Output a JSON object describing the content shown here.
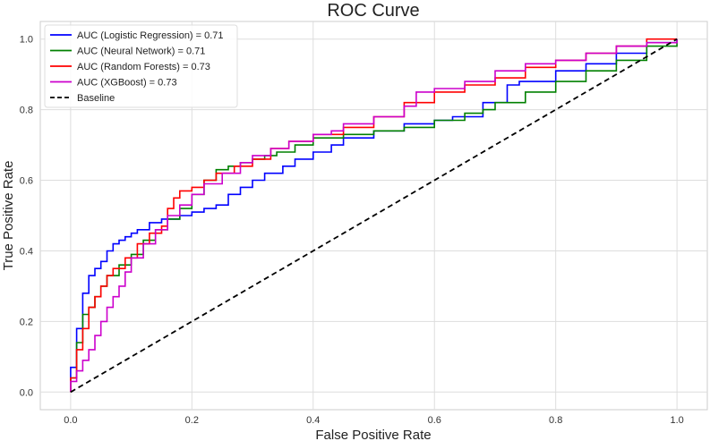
{
  "chart_data": {
    "type": "line",
    "title": "ROC Curve",
    "xlabel": "False Positive Rate",
    "ylabel": "True Positive Rate",
    "xlim": [
      -0.05,
      1.05
    ],
    "ylim": [
      -0.05,
      1.05
    ],
    "xticks": [
      0.0,
      0.2,
      0.4,
      0.6,
      0.8,
      1.0
    ],
    "yticks": [
      0.0,
      0.2,
      0.4,
      0.6,
      0.8,
      1.0
    ],
    "tick_labels_x": [
      "0.0",
      "0.2",
      "0.4",
      "0.6",
      "0.8",
      "1.0"
    ],
    "tick_labels_y": [
      "0.0",
      "0.2",
      "0.4",
      "0.6",
      "0.8",
      "1.0"
    ],
    "grid": true,
    "legend_position": "top-left",
    "series": [
      {
        "name": "AUC (Logistic Regression) = 0.71",
        "color": "#0000ff",
        "style": "solid",
        "x": [
          0,
          0,
          0.01,
          0.01,
          0.02,
          0.02,
          0.03,
          0.03,
          0.04,
          0.05,
          0.06,
          0.07,
          0.08,
          0.09,
          0.1,
          0.11,
          0.13,
          0.15,
          0.18,
          0.2,
          0.22,
          0.24,
          0.26,
          0.28,
          0.3,
          0.32,
          0.35,
          0.37,
          0.4,
          0.43,
          0.45,
          0.5,
          0.55,
          0.6,
          0.63,
          0.68,
          0.72,
          0.74,
          0.8,
          0.85,
          0.9,
          0.95,
          1.0
        ],
        "y": [
          0,
          0.07,
          0.08,
          0.18,
          0.18,
          0.28,
          0.29,
          0.33,
          0.35,
          0.37,
          0.4,
          0.42,
          0.43,
          0.44,
          0.45,
          0.46,
          0.48,
          0.49,
          0.5,
          0.51,
          0.52,
          0.53,
          0.56,
          0.58,
          0.6,
          0.62,
          0.64,
          0.66,
          0.68,
          0.7,
          0.72,
          0.74,
          0.76,
          0.77,
          0.78,
          0.82,
          0.87,
          0.88,
          0.91,
          0.93,
          0.96,
          0.99,
          1.0
        ]
      },
      {
        "name": "AUC (Neural Network) = 0.71",
        "color": "#008000",
        "style": "solid",
        "x": [
          0,
          0,
          0.01,
          0.01,
          0.02,
          0.02,
          0.03,
          0.04,
          0.05,
          0.06,
          0.08,
          0.1,
          0.12,
          0.14,
          0.16,
          0.18,
          0.2,
          0.22,
          0.24,
          0.26,
          0.28,
          0.3,
          0.32,
          0.34,
          0.37,
          0.4,
          0.45,
          0.5,
          0.55,
          0.6,
          0.65,
          0.68,
          0.7,
          0.75,
          0.8,
          0.85,
          0.9,
          0.95,
          1.0
        ],
        "y": [
          0,
          0.04,
          0.05,
          0.14,
          0.15,
          0.22,
          0.24,
          0.27,
          0.3,
          0.33,
          0.36,
          0.39,
          0.43,
          0.46,
          0.49,
          0.52,
          0.56,
          0.6,
          0.63,
          0.64,
          0.65,
          0.66,
          0.67,
          0.68,
          0.7,
          0.72,
          0.73,
          0.74,
          0.75,
          0.77,
          0.79,
          0.8,
          0.82,
          0.85,
          0.88,
          0.91,
          0.94,
          0.98,
          1.0
        ]
      },
      {
        "name": "AUC (Random Forests) = 0.73",
        "color": "#ff0000",
        "style": "solid",
        "x": [
          0,
          0,
          0.01,
          0.01,
          0.02,
          0.03,
          0.04,
          0.05,
          0.06,
          0.07,
          0.09,
          0.11,
          0.13,
          0.15,
          0.16,
          0.17,
          0.18,
          0.2,
          0.22,
          0.24,
          0.27,
          0.3,
          0.33,
          0.36,
          0.4,
          0.45,
          0.5,
          0.55,
          0.6,
          0.65,
          0.7,
          0.75,
          0.8,
          0.85,
          0.9,
          0.95,
          1.0
        ],
        "y": [
          0,
          0.04,
          0.06,
          0.12,
          0.18,
          0.24,
          0.27,
          0.3,
          0.33,
          0.35,
          0.38,
          0.42,
          0.45,
          0.47,
          0.52,
          0.55,
          0.57,
          0.58,
          0.6,
          0.62,
          0.64,
          0.66,
          0.69,
          0.71,
          0.73,
          0.75,
          0.78,
          0.82,
          0.85,
          0.87,
          0.89,
          0.92,
          0.94,
          0.96,
          0.98,
          1.0,
          1.0
        ]
      },
      {
        "name": "AUC (XGBoost) = 0.73",
        "color": "#cc00cc",
        "style": "solid",
        "x": [
          0,
          0,
          0.01,
          0.02,
          0.03,
          0.04,
          0.05,
          0.06,
          0.07,
          0.08,
          0.09,
          0.1,
          0.12,
          0.14,
          0.16,
          0.18,
          0.2,
          0.22,
          0.25,
          0.28,
          0.3,
          0.33,
          0.36,
          0.4,
          0.43,
          0.45,
          0.5,
          0.55,
          0.57,
          0.6,
          0.65,
          0.7,
          0.75,
          0.8,
          0.85,
          0.9,
          0.95,
          1.0
        ],
        "y": [
          0,
          0.03,
          0.06,
          0.09,
          0.12,
          0.16,
          0.2,
          0.24,
          0.27,
          0.3,
          0.34,
          0.38,
          0.42,
          0.46,
          0.5,
          0.53,
          0.56,
          0.59,
          0.62,
          0.65,
          0.67,
          0.69,
          0.71,
          0.73,
          0.74,
          0.76,
          0.78,
          0.81,
          0.85,
          0.86,
          0.88,
          0.91,
          0.93,
          0.94,
          0.96,
          0.98,
          0.99,
          1.0
        ]
      },
      {
        "name": "Baseline",
        "color": "#000000",
        "style": "dashed",
        "x": [
          0,
          1
        ],
        "y": [
          0,
          1
        ]
      }
    ]
  }
}
